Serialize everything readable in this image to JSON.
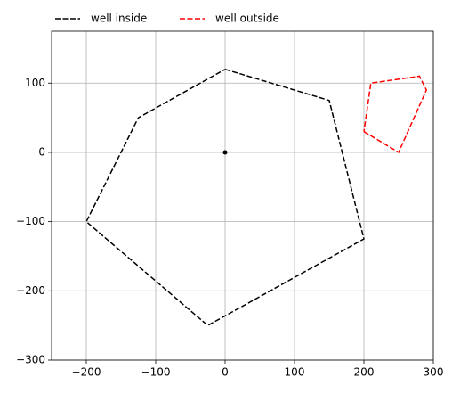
{
  "chart_data": {
    "type": "line",
    "series": [
      {
        "name": "well inside",
        "color": "#000000",
        "x": [
          0,
          150,
          200,
          -25,
          -200,
          -125,
          0
        ],
        "y": [
          120,
          75,
          -125,
          -250,
          -100,
          50,
          120
        ]
      },
      {
        "name": "well outside",
        "color": "#ff0000",
        "x": [
          200,
          250,
          290,
          280,
          210,
          200
        ],
        "y": [
          30,
          0,
          90,
          110,
          100,
          30
        ]
      }
    ],
    "markers": {
      "color": "#000000",
      "x": [
        0
      ],
      "y": [
        0
      ]
    },
    "xlim": [
      -250,
      300
    ],
    "ylim": [
      -300,
      175
    ],
    "xticks": [
      {
        "value": -200,
        "label": "−200"
      },
      {
        "value": -100,
        "label": "−100"
      },
      0,
      100,
      200,
      300
    ],
    "yticks": [
      {
        "value": -300,
        "label": "−300"
      },
      {
        "value": -200,
        "label": "−200"
      },
      {
        "value": -100,
        "label": "−100"
      },
      0,
      100
    ],
    "grid": true,
    "line_style": "dashed",
    "legend": "top-left-outside"
  }
}
